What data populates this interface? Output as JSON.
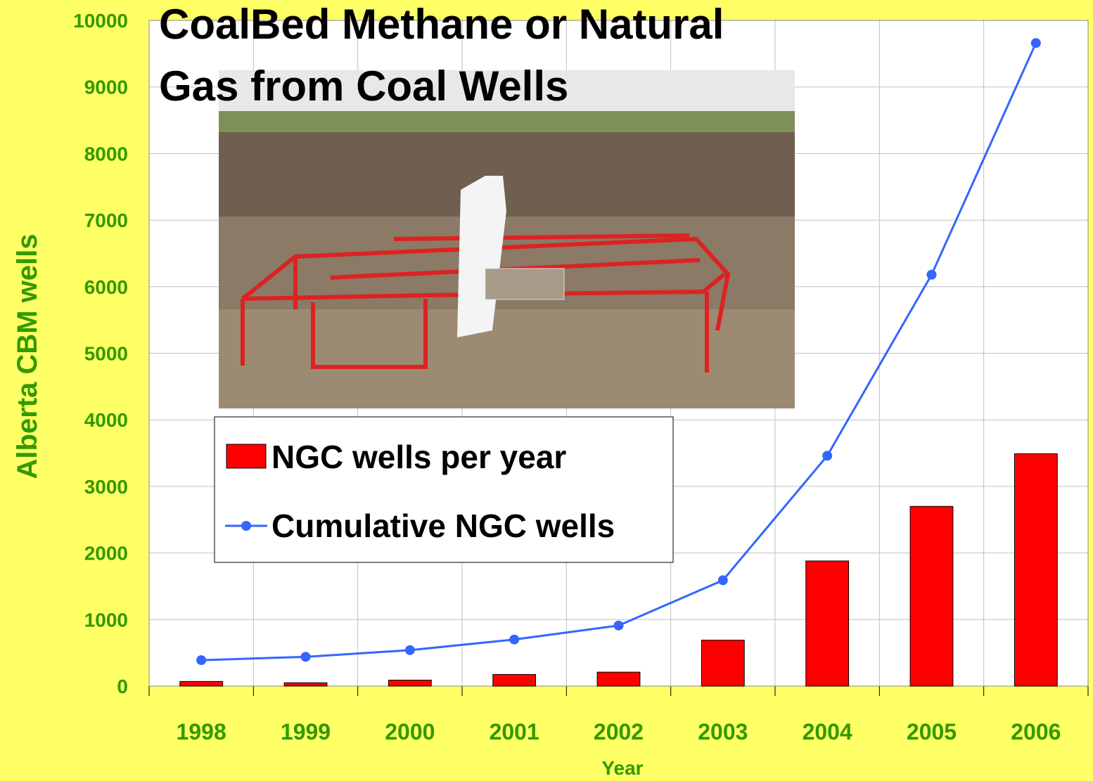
{
  "chart_data": {
    "type": "bar_line",
    "title": [
      "CoalBed Methane or Natural",
      "Gas from Coal Wells"
    ],
    "xlabel": "Year",
    "ylabel": "Alberta CBM wells",
    "categories": [
      "1998",
      "1999",
      "2000",
      "2001",
      "2002",
      "2003",
      "2004",
      "2005",
      "2006"
    ],
    "series": [
      {
        "name": "NGC wells per year",
        "type": "bar",
        "color": "#ff0000",
        "values": [
          70,
          50,
          90,
          175,
          210,
          690,
          1880,
          2700,
          3490
        ]
      },
      {
        "name": "Cumulative NGC wells",
        "type": "line",
        "color": "#3366ff",
        "values": [
          390,
          440,
          540,
          700,
          910,
          1590,
          3460,
          6180,
          9660
        ]
      }
    ],
    "ylim": [
      0,
      10000
    ],
    "yticks": [
      0,
      1000,
      2000,
      3000,
      4000,
      5000,
      6000,
      7000,
      8000,
      9000,
      10000
    ],
    "grid": true
  }
}
